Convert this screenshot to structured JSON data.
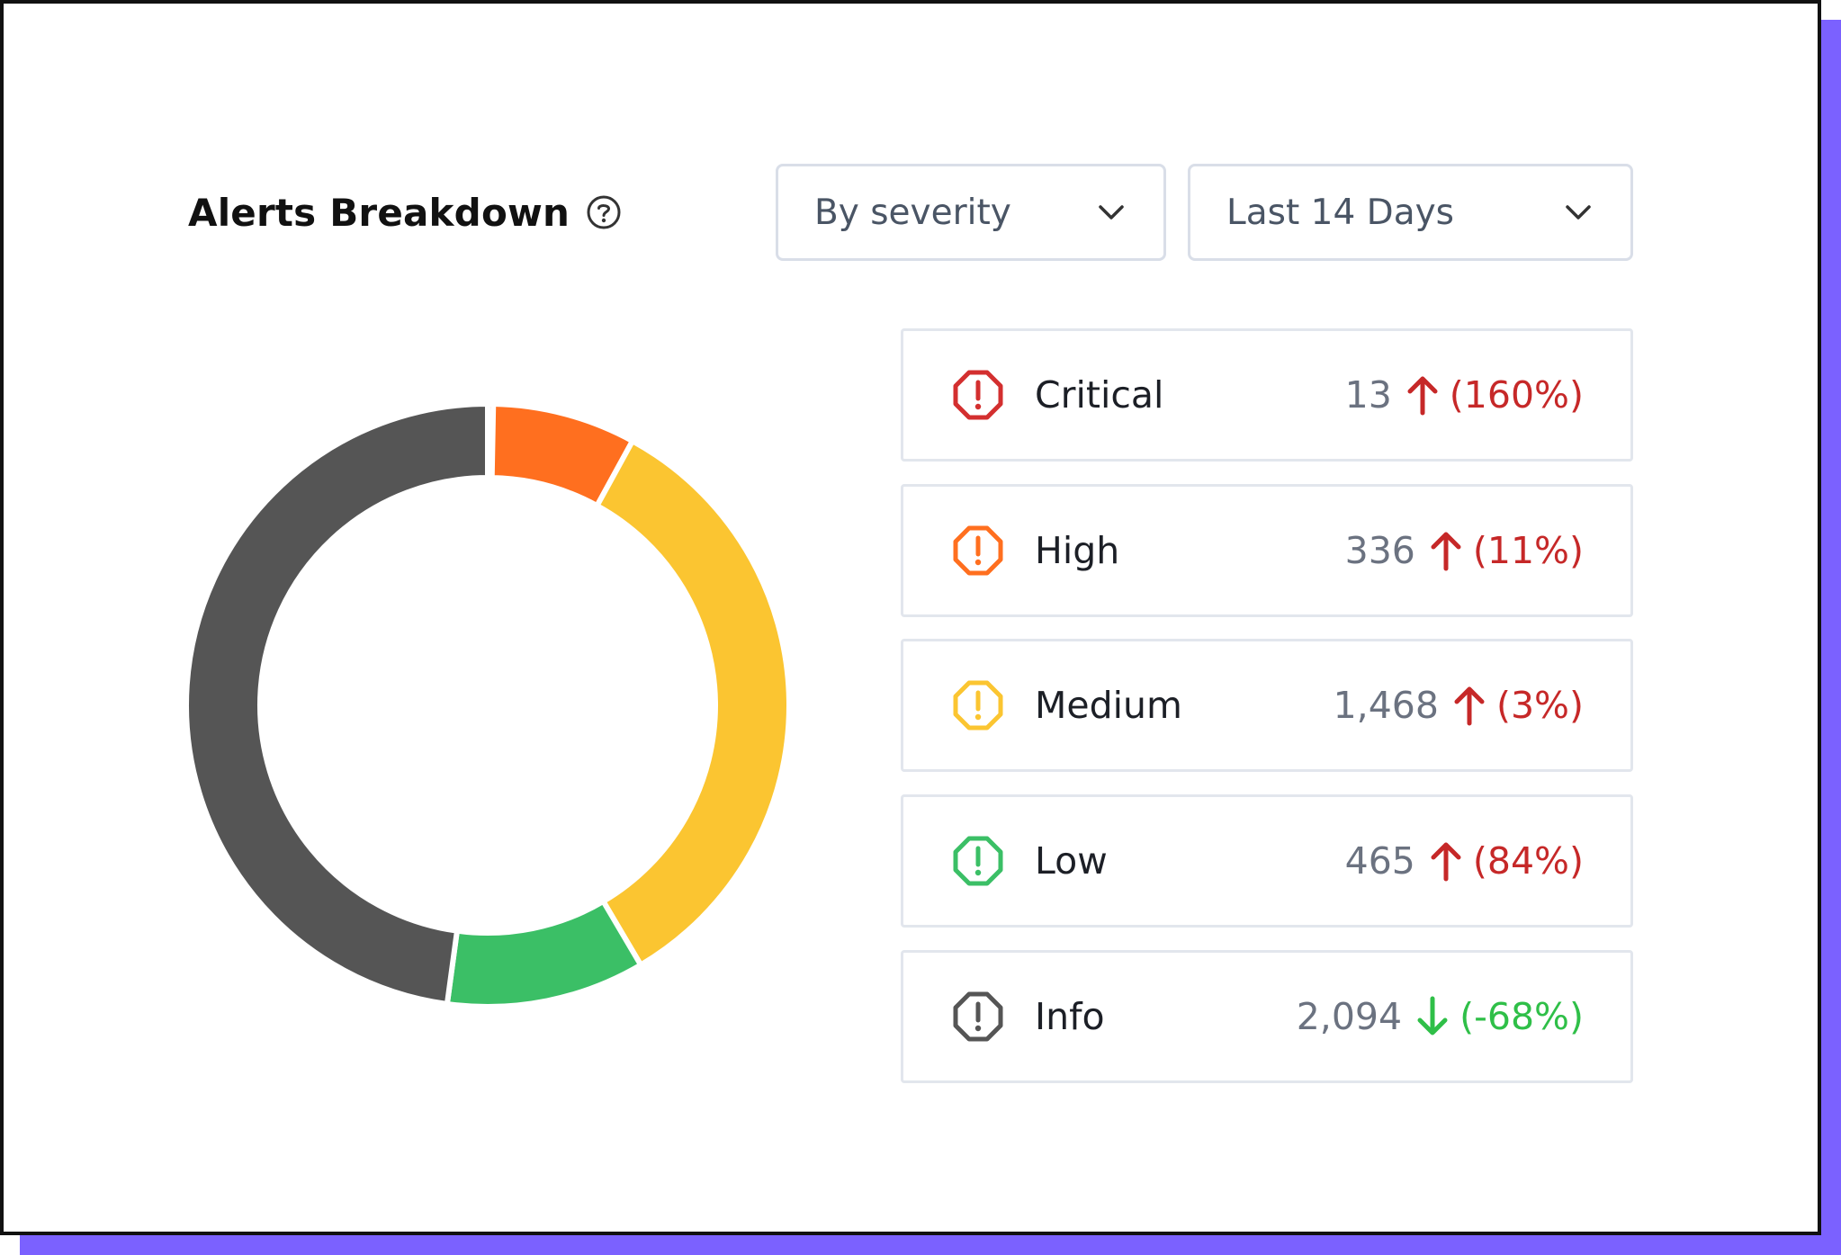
{
  "header": {
    "title": "Alerts Breakdown",
    "help_icon": "help-circle-icon"
  },
  "filters": {
    "group_by": {
      "selected": "By severity",
      "icon": "chevron-down-icon"
    },
    "date_range": {
      "selected": "Last 14 Days",
      "icon": "chevron-down-icon"
    }
  },
  "colors": {
    "critical": "#d32f2f",
    "high": "#ff6f1f",
    "medium": "#fbc531",
    "low": "#3bbf66",
    "info": "#555555",
    "trend_up": "#c62828",
    "trend_down": "#2fbf48"
  },
  "severities": [
    {
      "label": "Critical",
      "count": "13",
      "trend": "up",
      "change": "(160%)",
      "icon": "alert-octagon-icon"
    },
    {
      "label": "High",
      "count": "336",
      "trend": "up",
      "change": "(11%)",
      "icon": "alert-octagon-icon"
    },
    {
      "label": "Medium",
      "count": "1,468",
      "trend": "up",
      "change": "(3%)",
      "icon": "alert-octagon-icon"
    },
    {
      "label": "Low",
      "count": "465",
      "trend": "up",
      "change": "(84%)",
      "icon": "alert-octagon-icon"
    },
    {
      "label": "Info",
      "count": "2,094",
      "trend": "down",
      "change": "(-68%)",
      "icon": "alert-octagon-icon"
    }
  ],
  "chart_data": {
    "type": "pie",
    "categories": [
      "Critical",
      "High",
      "Medium",
      "Low",
      "Info"
    ],
    "values": [
      13,
      336,
      1468,
      465,
      2094
    ],
    "title": "",
    "donut": true,
    "legend": "right"
  }
}
